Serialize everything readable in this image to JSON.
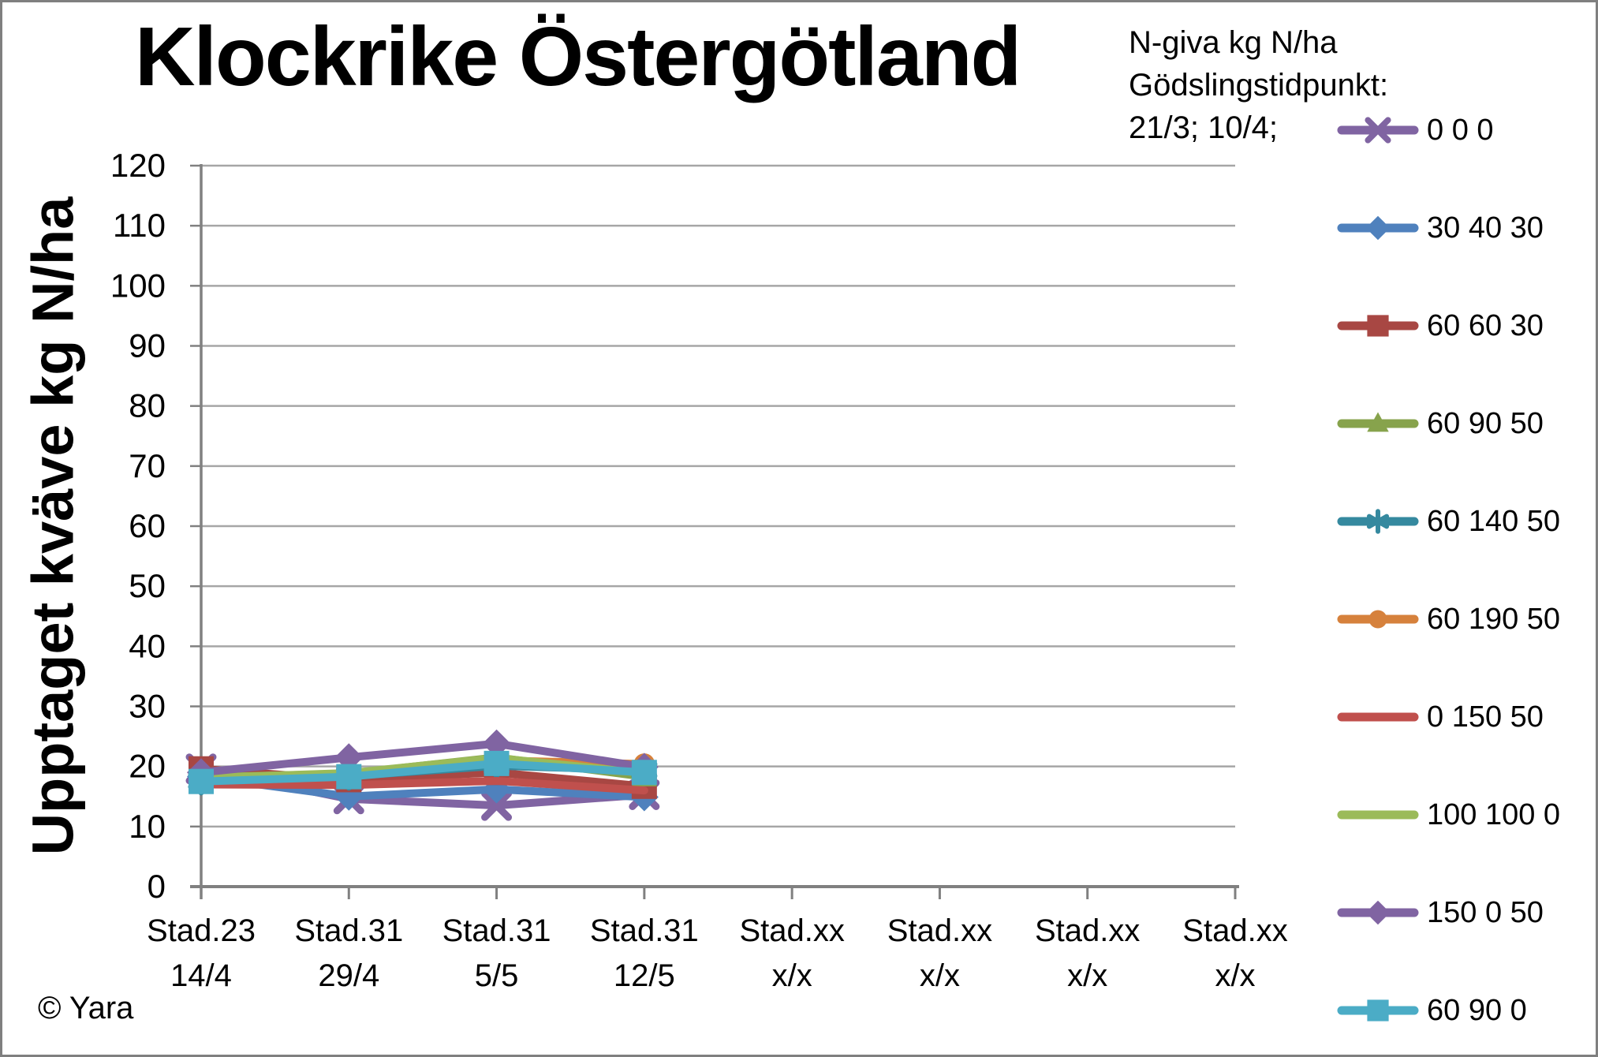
{
  "title": "Klockrike Östergötland",
  "annotation": {
    "lines": [
      "N-giva kg N/ha",
      "Gödslingstidpunkt:",
      "21/3; 10/4;"
    ]
  },
  "copyright": "© Yara",
  "chart_data": {
    "type": "line",
    "title": "Klockrike Östergötland",
    "ylabel": "Upptaget kväve kg N/ha",
    "xlabel": "",
    "ylim": [
      0,
      120
    ],
    "yticks": [
      0,
      10,
      20,
      30,
      40,
      50,
      60,
      70,
      80,
      90,
      100,
      110,
      120
    ],
    "grid": "horizontal",
    "legend_position": "right",
    "legend_title_lines": [
      "N-giva kg N/ha",
      "Gödslingstidpunkt:",
      "21/3; 10/4;"
    ],
    "axis_color": "#808080",
    "grid_color": "#A6A6A6",
    "categories": [
      [
        "Stad.23",
        "14/4"
      ],
      [
        "Stad.31",
        "29/4"
      ],
      [
        "Stad.31",
        "5/5"
      ],
      [
        "Stad.31",
        "12/5"
      ],
      [
        "Stad.xx",
        "x/x"
      ],
      [
        "Stad.xx",
        "x/x"
      ],
      [
        "Stad.xx",
        "x/x"
      ],
      [
        "Stad.xx",
        "x/x"
      ]
    ],
    "series": [
      {
        "name": "0 0 0",
        "color": "#8064A2",
        "marker": "x",
        "values": [
          19.6,
          14.6,
          13.5,
          15.3
        ]
      },
      {
        "name": "30 40 30",
        "color": "#4F81BD",
        "marker": "diamond",
        "values": [
          18.3,
          15.0,
          16.2,
          14.9
        ]
      },
      {
        "name": "60 60 30",
        "color": "#A84743",
        "marker": "square",
        "values": [
          19.6,
          17.8,
          19.0,
          16.7
        ]
      },
      {
        "name": "60 90 50",
        "color": "#87A34C",
        "marker": "triangle",
        "values": [
          18.2,
          18.8,
          21.5,
          18.3
        ]
      },
      {
        "name": "60 140 50",
        "color": "#35899F",
        "marker": "asterisk",
        "values": [
          17.6,
          18.4,
          20.1,
          19.4
        ]
      },
      {
        "name": "60 190 50",
        "color": "#D6813C",
        "marker": "circle",
        "values": [
          18.0,
          18.6,
          21.0,
          20.4
        ]
      },
      {
        "name": "0 150 50",
        "color": "#C0504D",
        "marker": "none",
        "values": [
          17.0,
          16.9,
          17.6,
          16.0
        ]
      },
      {
        "name": "100 100 0",
        "color": "#9BBB59",
        "marker": "none",
        "values": [
          18.1,
          18.9,
          21.4,
          18.9
        ]
      },
      {
        "name": "150 0 50",
        "color": "#8064A2",
        "marker": "diamond",
        "values": [
          19.0,
          21.5,
          23.8,
          19.9
        ]
      },
      {
        "name": "60 90 0",
        "color": "#4BACC6",
        "marker": "square",
        "values": [
          17.5,
          18.3,
          20.5,
          19.0
        ]
      }
    ]
  }
}
